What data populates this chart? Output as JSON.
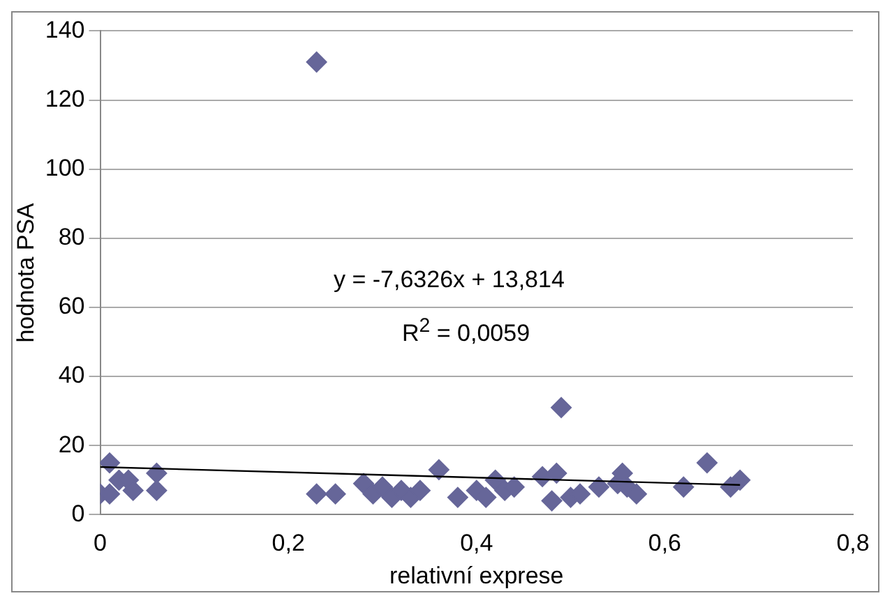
{
  "chart_data": {
    "type": "scatter",
    "xlabel": "relativní exprese",
    "ylabel": "hodnota PSA",
    "annotations": [
      "y = -7,6326x + 13,814",
      "R$^{2}$ = 0,0059"
    ],
    "series": [
      {
        "color": "#666699",
        "x": [
          0.0,
          0.01,
          0.01,
          0.02,
          0.03,
          0.035,
          0.06,
          0.06,
          0.23,
          0.23,
          0.25,
          0.28,
          0.29,
          0.3,
          0.31,
          0.32,
          0.33,
          0.34,
          0.36,
          0.38,
          0.4,
          0.41,
          0.42,
          0.43,
          0.44,
          0.47,
          0.48,
          0.485,
          0.49,
          0.5,
          0.51,
          0.53,
          0.55,
          0.555,
          0.56,
          0.57,
          0.62,
          0.645,
          0.67,
          0.68
        ],
        "values": [
          6,
          15,
          6,
          10,
          10,
          7,
          12,
          7,
          131,
          6,
          6,
          9,
          6,
          8,
          5,
          7,
          5,
          7,
          13,
          5,
          7,
          5,
          10,
          7,
          8,
          11,
          4,
          12,
          31,
          5,
          6,
          8,
          9,
          12,
          8,
          6,
          8,
          15,
          8,
          10
        ]
      },
      {
        "type": "line",
        "color": "#000000",
        "marker": "none",
        "x": [
          0,
          0.68
        ],
        "values": [
          13.8,
          8.6
        ]
      }
    ],
    "xlim": [
      0,
      0.8
    ],
    "xticks": [
      0,
      {
        "value": 0.2,
        "label": "0,2"
      },
      {
        "value": 0.4,
        "label": "0,4"
      },
      {
        "value": 0.6,
        "label": "0,6"
      },
      {
        "value": 0.8,
        "label": "0,8"
      }
    ],
    "ylim": [
      0,
      140
    ],
    "yticks": [
      0,
      20,
      40,
      60,
      80,
      100,
      120,
      140
    ],
    "grid": "y",
    "marker": "diamond"
  }
}
